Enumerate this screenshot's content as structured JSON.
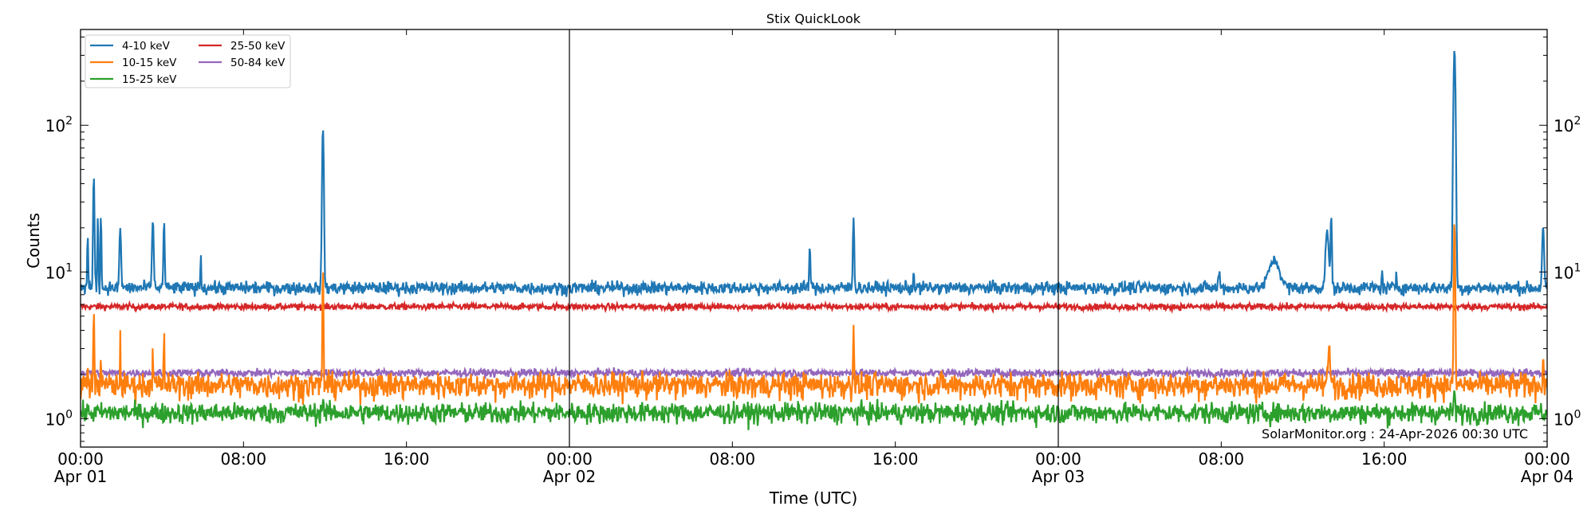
{
  "chart_data": {
    "type": "line",
    "title": "Stix QuickLook",
    "xlabel": "Time (UTC)",
    "ylabel": "Counts",
    "yscale": "log",
    "ylim": [
      0.64,
      450
    ],
    "xlim_hours_from": "Apr 01 00:00",
    "xlim": [
      0,
      72
    ],
    "x_ticks": [
      {
        "hour": 0,
        "time": "00:00",
        "date": "Apr 01"
      },
      {
        "hour": 8,
        "time": "08:00",
        "date": ""
      },
      {
        "hour": 16,
        "time": "16:00",
        "date": ""
      },
      {
        "hour": 24,
        "time": "00:00",
        "date": "Apr 02"
      },
      {
        "hour": 32,
        "time": "08:00",
        "date": ""
      },
      {
        "hour": 40,
        "time": "16:00",
        "date": ""
      },
      {
        "hour": 48,
        "time": "00:00",
        "date": "Apr 03"
      },
      {
        "hour": 56,
        "time": "08:00",
        "date": ""
      },
      {
        "hour": 64,
        "time": "16:00",
        "date": ""
      },
      {
        "hour": 72,
        "time": "00:00",
        "date": "Apr 04"
      }
    ],
    "y_ticks": [
      {
        "value": 1,
        "base": "10",
        "exp": "0"
      },
      {
        "value": 10,
        "base": "10",
        "exp": "1"
      },
      {
        "value": 100,
        "base": "10",
        "exp": "2"
      }
    ],
    "day_lines_hours": [
      24,
      48
    ],
    "grid": false,
    "legend_placement": "top-left",
    "annotation": "SolarMonitor.org : 24-Apr-2026 00:30 UTC",
    "series": [
      {
        "name": "4-10 keV",
        "color": "#1f77b4",
        "baseline": 7.8,
        "noise": 0.05,
        "peaks": [
          [
            0.35,
            18,
            0.03
          ],
          [
            0.65,
            46,
            0.04
          ],
          [
            0.85,
            25,
            0.03
          ],
          [
            1.0,
            25,
            0.03
          ],
          [
            1.95,
            20,
            0.05
          ],
          [
            3.55,
            23,
            0.05
          ],
          [
            4.1,
            22,
            0.04
          ],
          [
            5.9,
            13,
            0.03
          ],
          [
            11.9,
            95,
            0.05
          ],
          [
            35.8,
            15,
            0.04
          ],
          [
            37.95,
            24,
            0.04
          ],
          [
            40.9,
            10,
            0.03
          ],
          [
            55.9,
            10,
            0.05
          ],
          [
            58.6,
            12,
            0.35
          ],
          [
            61.2,
            19,
            0.1
          ],
          [
            61.4,
            24,
            0.04
          ],
          [
            63.9,
            10,
            0.03
          ],
          [
            64.6,
            10,
            0.03
          ],
          [
            67.45,
            330,
            0.06
          ],
          [
            71.8,
            20,
            0.06
          ]
        ]
      },
      {
        "name": "10-15 keV",
        "color": "#ff7f0e",
        "baseline": 1.7,
        "noise": 0.1,
        "peaks": [
          [
            0.35,
            2.6,
            0.02
          ],
          [
            0.65,
            5.5,
            0.03
          ],
          [
            1.0,
            3.0,
            0.02
          ],
          [
            1.95,
            3.7,
            0.02
          ],
          [
            3.55,
            3.7,
            0.02
          ],
          [
            4.1,
            4.3,
            0.02
          ],
          [
            11.9,
            11,
            0.03
          ],
          [
            37.95,
            4.5,
            0.03
          ],
          [
            61.3,
            2.9,
            0.08
          ],
          [
            67.45,
            22,
            0.04
          ],
          [
            71.8,
            2.5,
            0.04
          ]
        ]
      },
      {
        "name": "15-25 keV",
        "color": "#2ca02c",
        "baseline": 1.1,
        "noise": 0.08,
        "peaks": [
          [
            11.9,
            1.5,
            0.03
          ],
          [
            67.45,
            1.6,
            0.04
          ]
        ]
      },
      {
        "name": "25-50 keV",
        "color": "#d62728",
        "baseline": 5.8,
        "noise": 0.025,
        "peaks": []
      },
      {
        "name": "50-84 keV",
        "color": "#9467bd",
        "baseline": 2.05,
        "noise": 0.03,
        "peaks": []
      }
    ]
  }
}
